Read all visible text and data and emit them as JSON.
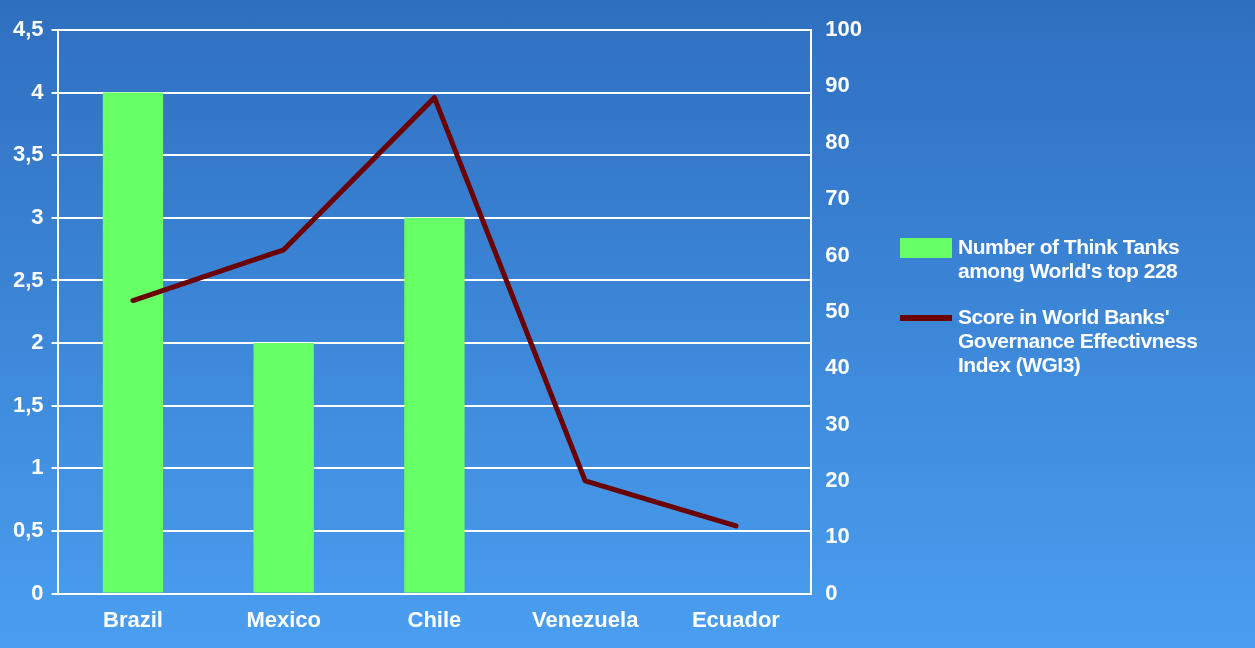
{
  "chart_data": {
    "type": "bar",
    "categories": [
      "Brazil",
      "Mexico",
      "Chile",
      "Venezuela",
      "Ecuador"
    ],
    "series": [
      {
        "name": "Number of Think Tanks among World's top 228",
        "type": "bar",
        "color": "#66ff66",
        "values": [
          4,
          2,
          3,
          null,
          null
        ]
      },
      {
        "name": "Score in World Banks' Governance Effectivness Index (WGI3)",
        "type": "line",
        "axis": "y2",
        "color": "#6b0000",
        "values": [
          52,
          61,
          88,
          20,
          12
        ]
      }
    ],
    "ylim": [
      0,
      4.5
    ],
    "yticks": [
      0,
      {
        "value": 0.5,
        "label": "0,5"
      },
      1,
      {
        "value": 1.5,
        "label": "1,5"
      },
      2,
      {
        "value": 2.5,
        "label": "2,5"
      },
      3,
      {
        "value": 3.5,
        "label": "3,5"
      },
      4,
      {
        "value": 4.5,
        "label": "4,5"
      }
    ],
    "y2lim": [
      0,
      100
    ],
    "y2ticks": [
      0,
      10,
      20,
      30,
      40,
      50,
      60,
      70,
      80,
      90,
      100
    ],
    "grid": "y",
    "legend": "right",
    "marker": "none",
    "line_style": "solid"
  }
}
